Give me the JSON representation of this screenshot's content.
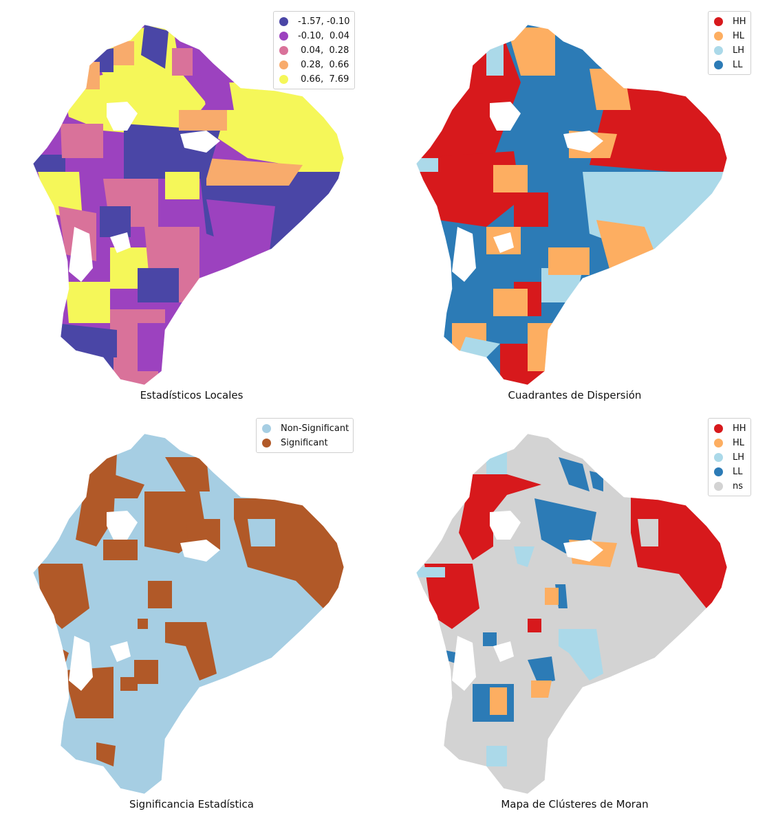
{
  "panels": [
    {
      "title": "Estadísticos Locales",
      "legend": [
        {
          "label": "-1.57, -0.10",
          "color": "#4a46a6"
        },
        {
          "label": "-0.10,  0.04",
          "color": "#9c42bf"
        },
        {
          "label": " 0.04,  0.28",
          "color": "#d9729a"
        },
        {
          "label": " 0.28,  0.66",
          "color": "#f8ab6c"
        },
        {
          "label": " 0.66,  7.69",
          "color": "#f5f759"
        }
      ]
    },
    {
      "title": "Cuadrantes de Dispersión",
      "legend": [
        {
          "label": "HH",
          "color": "#d7191c"
        },
        {
          "label": "HL",
          "color": "#fdae61"
        },
        {
          "label": "LH",
          "color": "#abd9e9"
        },
        {
          "label": "LL",
          "color": "#2c7bb6"
        }
      ]
    },
    {
      "title": "Significancia Estadística",
      "legend": [
        {
          "label": "Non-Significant",
          "color": "#a6cee3"
        },
        {
          "label": "Significant",
          "color": "#b15928"
        }
      ]
    },
    {
      "title": "Mapa de Clústeres de Moran",
      "legend": [
        {
          "label": "HH",
          "color": "#d7191c"
        },
        {
          "label": "HL",
          "color": "#fdae61"
        },
        {
          "label": "LH",
          "color": "#abd9e9"
        },
        {
          "label": "LL",
          "color": "#2c7bb6"
        },
        {
          "label": "ns",
          "color": "#d3d3d3"
        }
      ]
    }
  ]
}
